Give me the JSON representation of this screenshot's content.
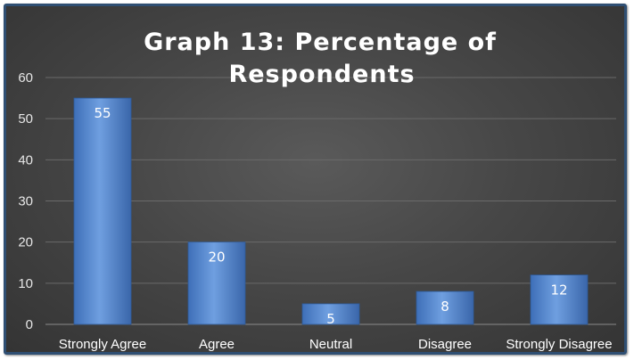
{
  "chart_data": {
    "type": "bar",
    "title_lines": [
      "Graph 13: Percentage of",
      "Respondents"
    ],
    "categories": [
      "Strongly Agree",
      "Agree",
      "Neutral",
      "Disagree",
      "Strongly Disagree"
    ],
    "values": [
      55,
      20,
      5,
      8,
      12
    ],
    "data_labels": [
      "55",
      "20",
      "5",
      "8",
      "12"
    ],
    "xlabel": "",
    "ylabel": "",
    "ylim": [
      0,
      60
    ],
    "yticks": [
      "0",
      "10",
      "20",
      "30",
      "40",
      "50",
      "60"
    ],
    "grid": true,
    "legend": "none",
    "colors": {
      "bar_top": "#9cc0ee",
      "bar_mid": "#5b8fd6",
      "bar_bottom": "#3e6fb8",
      "grid": "#6a6a6a",
      "background": "#474747",
      "border": "#2f4f73"
    }
  }
}
